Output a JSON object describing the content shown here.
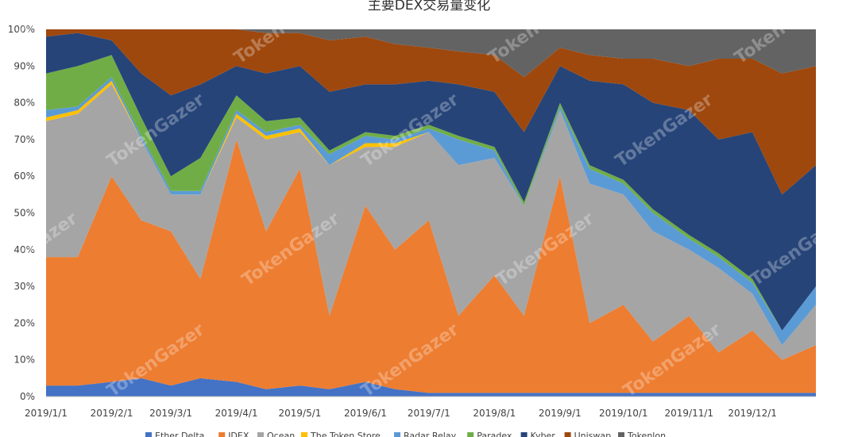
{
  "chart_data": {
    "type": "area",
    "stacked": "percent",
    "title": "主要DEX交易量变化",
    "watermark": "TokenGazer",
    "y_ticks": [
      "0%",
      "10%",
      "20%",
      "30%",
      "40%",
      "50%",
      "60%",
      "70%",
      "80%",
      "90%",
      "100%"
    ],
    "x_ticks": [
      "2019/1/1",
      "2019/2/1",
      "2019/3/1",
      "2019/4/1",
      "2019/5/1",
      "2019/6/1",
      "2019/7/1",
      "2019/8/1",
      "2019/9/1",
      "2019/10/1",
      "2019/11/1",
      "2019/12/1"
    ],
    "legend_position": "bottom",
    "legend": [
      "Ether Delta",
      "IDEX",
      "Ocean",
      "The Token Store",
      "Radar Relay",
      "Paradex",
      "Kyber",
      "Uniswap",
      "Tokenlon"
    ],
    "series": [
      {
        "name": "Ether Delta",
        "color": "#4472c4"
      },
      {
        "name": "IDEX",
        "color": "#ed7d31"
      },
      {
        "name": "Ocean",
        "color": "#a5a5a5"
      },
      {
        "name": "The Token Store",
        "color": "#ffc000"
      },
      {
        "name": "Radar Relay",
        "color": "#5b9bd5"
      },
      {
        "name": "Paradex",
        "color": "#70ad47"
      },
      {
        "name": "Kyber",
        "color": "#264478"
      },
      {
        "name": "Uniswap",
        "color": "#9e480e"
      },
      {
        "name": "Tokenlon",
        "color": "#636363"
      }
    ],
    "x": [
      "2019-01-01",
      "2019-01-16",
      "2019-02-01",
      "2019-02-15",
      "2019-03-01",
      "2019-03-15",
      "2019-04-01",
      "2019-04-15",
      "2019-05-01",
      "2019-05-15",
      "2019-06-01",
      "2019-06-15",
      "2019-07-01",
      "2019-07-15",
      "2019-08-01",
      "2019-08-15",
      "2019-09-01",
      "2019-09-15",
      "2019-10-01",
      "2019-10-15",
      "2019-11-01",
      "2019-11-15",
      "2019-12-01",
      "2019-12-15",
      "2019-12-31"
    ],
    "cumulative_percent": [
      [
        3,
        3,
        4,
        5,
        3,
        5,
        4,
        2,
        3,
        2,
        4,
        2,
        1,
        1,
        1,
        1,
        1,
        1,
        1,
        1,
        1,
        1,
        1,
        1,
        1
      ],
      [
        38,
        38,
        60,
        48,
        45,
        32,
        70,
        45,
        62,
        22,
        52,
        40,
        48,
        22,
        33,
        22,
        60,
        20,
        25,
        15,
        22,
        12,
        18,
        10,
        14
      ],
      [
        75,
        77,
        85,
        70,
        55,
        55,
        76,
        70,
        72,
        63,
        68,
        68,
        72,
        63,
        65,
        52,
        78,
        58,
        55,
        45,
        40,
        35,
        28,
        14,
        25
      ],
      [
        76,
        78,
        86,
        70,
        55,
        55,
        77,
        71,
        73,
        63,
        69,
        69,
        72,
        63,
        65,
        52,
        78,
        58,
        55,
        45,
        40,
        35,
        28,
        14,
        25
      ],
      [
        78,
        79,
        87,
        71,
        56,
        56,
        78,
        72,
        74,
        66,
        71,
        70,
        73,
        70,
        67,
        52,
        79,
        62,
        58,
        50,
        43,
        38,
        31,
        18,
        30
      ],
      [
        88,
        90,
        93,
        76,
        60,
        65,
        82,
        75,
        76,
        67,
        72,
        71,
        74,
        71,
        68,
        53,
        80,
        63,
        59,
        51,
        44,
        39,
        32,
        18,
        30
      ],
      [
        98,
        99,
        97,
        88,
        82,
        85,
        90,
        88,
        90,
        83,
        85,
        85,
        86,
        85,
        83,
        72,
        90,
        86,
        85,
        80,
        78,
        70,
        72,
        55,
        63
      ],
      [
        100,
        100,
        100,
        100,
        100,
        100,
        100,
        99,
        99,
        97,
        98,
        96,
        95,
        94,
        93,
        87,
        95,
        93,
        92,
        92,
        90,
        92,
        92,
        88,
        90
      ],
      [
        100,
        100,
        100,
        100,
        100,
        100,
        100,
        100,
        100,
        100,
        100,
        100,
        100,
        100,
        100,
        100,
        100,
        100,
        100,
        100,
        100,
        100,
        100,
        100,
        100
      ]
    ]
  }
}
